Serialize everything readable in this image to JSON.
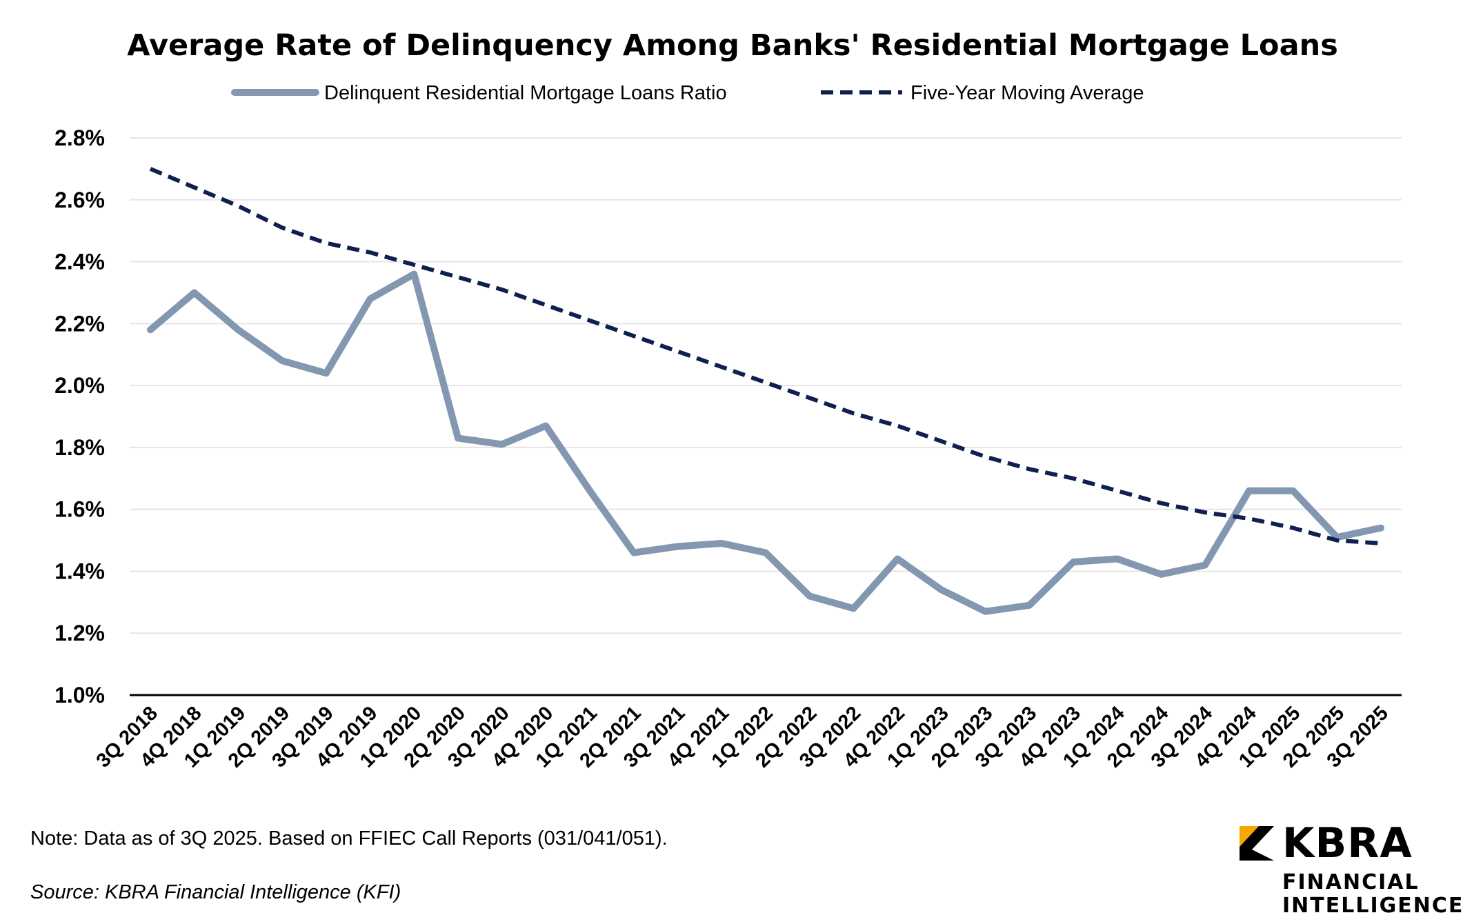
{
  "chart_data": {
    "type": "line",
    "title": "Average Rate of Delinquency Among Banks' Residential Mortgage Loans",
    "xlabel": "",
    "ylabel": "",
    "ylim": [
      1.0,
      2.8
    ],
    "yticks": [
      "1.0%",
      "1.2%",
      "1.4%",
      "1.6%",
      "1.8%",
      "2.0%",
      "2.2%",
      "2.4%",
      "2.6%",
      "2.8%"
    ],
    "grid": true,
    "legend_position": "top-center",
    "categories": [
      "3Q 2018",
      "4Q 2018",
      "1Q 2019",
      "2Q 2019",
      "3Q 2019",
      "4Q 2019",
      "1Q 2020",
      "2Q 2020",
      "3Q 2020",
      "4Q 2020",
      "1Q 2021",
      "2Q 2021",
      "3Q 2021",
      "4Q 2021",
      "1Q 2022",
      "2Q 2022",
      "3Q 2022",
      "4Q 2022",
      "1Q 2023",
      "2Q 2023",
      "3Q 2023",
      "4Q 2023",
      "1Q 2024",
      "2Q 2024",
      "3Q 2024",
      "4Q 2024",
      "1Q 2025",
      "2Q 2025",
      "3Q 2025"
    ],
    "series": [
      {
        "name": "Delinquent Residential Mortgage Loans Ratio",
        "color": "#8497b0",
        "style": "solid",
        "values": [
          2.18,
          2.3,
          2.18,
          2.08,
          2.04,
          2.28,
          2.36,
          1.83,
          1.81,
          1.87,
          1.66,
          1.46,
          1.48,
          1.49,
          1.46,
          1.32,
          1.28,
          1.44,
          1.34,
          1.27,
          1.29,
          1.43,
          1.44,
          1.39,
          1.42,
          1.66,
          1.66,
          1.51,
          1.54
        ]
      },
      {
        "name": "Five-Year Moving Average",
        "color": "#0f1f4f",
        "style": "dashed",
        "values": [
          2.7,
          2.64,
          2.58,
          2.51,
          2.46,
          2.43,
          2.39,
          2.35,
          2.31,
          2.26,
          2.21,
          2.16,
          2.11,
          2.06,
          2.01,
          1.96,
          1.91,
          1.87,
          1.82,
          1.77,
          1.73,
          1.7,
          1.66,
          1.62,
          1.59,
          1.57,
          1.54,
          1.5,
          1.49
        ]
      }
    ]
  },
  "footer": {
    "note": "Note: Data as of 3Q 2025. Based on FFIEC Call Reports (031/041/051).",
    "source": "Source: KBRA Financial Intelligence (KFI)"
  },
  "logo": {
    "name": "KBRA",
    "line1": "FINANCIAL",
    "line2": "INTELLIGENCE",
    "accent_color": "#f5a800"
  }
}
